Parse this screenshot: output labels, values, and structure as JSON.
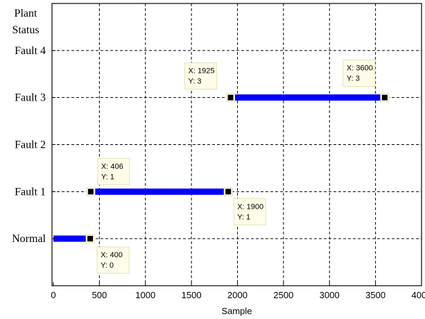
{
  "chart_data": {
    "type": "line",
    "xlabel": "Sample",
    "xlim": [
      0,
      4000
    ],
    "ylim": [
      -1,
      5
    ],
    "x_ticks": [
      0,
      500,
      1000,
      1500,
      2000,
      2500,
      3000,
      3500,
      4000
    ],
    "x_tick_labels": [
      "0",
      "500",
      "1000",
      "1500",
      "2000",
      "2500",
      "3000",
      "3500",
      "4000"
    ],
    "y_ticks": [
      0,
      1,
      2,
      3,
      4
    ],
    "y_tick_labels": [
      "Normal",
      "Fault 1",
      "Fault 2",
      "Fault 3",
      "Fault 4"
    ],
    "ylabel_lines": [
      "Plant",
      "Status"
    ],
    "grid": true,
    "series": [
      {
        "color": "#0000ff",
        "segments": [
          [
            [
              0,
              0
            ],
            [
              400,
              0
            ]
          ],
          [
            [
              406,
              1
            ],
            [
              1900,
              1
            ]
          ],
          [
            [
              1925,
              3
            ],
            [
              3600,
              3
            ]
          ]
        ]
      }
    ],
    "datatips": [
      {
        "x": 400,
        "y": 0,
        "lines": [
          "X: 400",
          "Y: 0"
        ]
      },
      {
        "x": 406,
        "y": 1,
        "lines": [
          "X: 406",
          "Y: 1"
        ]
      },
      {
        "x": 1900,
        "y": 1,
        "lines": [
          "X: 1900",
          "Y: 1"
        ]
      },
      {
        "x": 1925,
        "y": 3,
        "lines": [
          "X: 1925",
          "Y: 3"
        ]
      },
      {
        "x": 3600,
        "y": 3,
        "lines": [
          "X: 3600",
          "Y: 3"
        ]
      }
    ]
  }
}
